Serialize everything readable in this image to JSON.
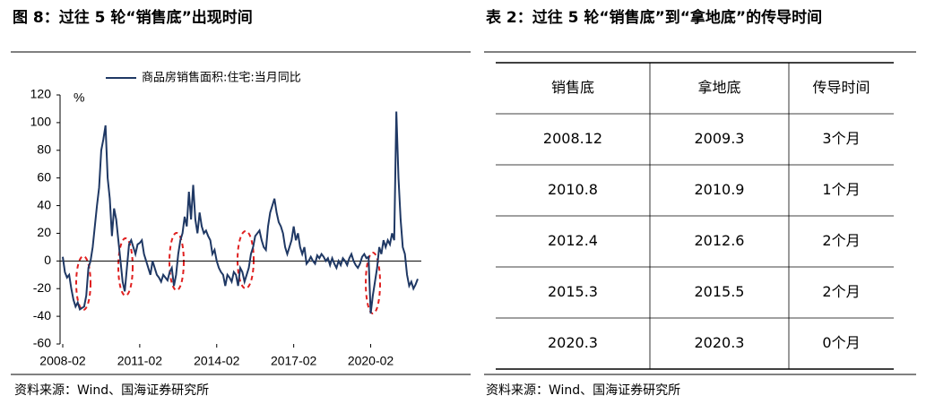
{
  "chart_data": {
    "type": "line",
    "title": "图 8：过往 5 轮“销售底”出现时间",
    "y_unit": "%",
    "source": "资料来源：Wind、国海证券研究所",
    "categories": [
      "2008-02",
      null,
      null,
      null,
      null,
      null,
      null,
      null,
      null,
      null,
      null,
      null,
      null,
      null,
      null,
      null,
      null,
      null,
      null,
      null,
      null,
      null,
      null,
      null,
      null,
      null,
      null,
      null,
      null,
      null,
      null,
      null,
      null,
      null,
      null,
      null,
      "2011-02",
      null,
      null,
      null,
      null,
      null,
      null,
      null,
      null,
      null,
      null,
      null,
      null,
      null,
      null,
      null,
      null,
      null,
      null,
      null,
      null,
      null,
      null,
      null,
      null,
      null,
      null,
      null,
      null,
      null,
      null,
      null,
      null,
      null,
      null,
      null,
      "2014-02",
      null,
      null,
      null,
      null,
      null,
      null,
      null,
      null,
      null,
      null,
      null,
      null,
      null,
      null,
      null,
      null,
      null,
      null,
      null,
      null,
      null,
      null,
      null,
      null,
      null,
      null,
      null,
      null,
      null,
      null,
      null,
      null,
      null,
      null,
      null,
      "2017-02",
      null,
      null,
      null,
      null,
      null,
      null,
      null,
      null,
      null,
      null,
      null,
      null,
      null,
      null,
      null,
      null,
      null,
      null,
      null,
      null,
      null,
      null,
      null,
      null,
      null,
      null,
      null,
      null,
      null,
      null,
      null,
      null,
      null,
      null,
      null,
      "2020-02",
      null,
      null,
      null,
      null,
      null,
      null,
      null,
      null,
      null,
      null,
      null,
      null,
      null,
      null,
      null,
      null,
      null,
      null,
      null,
      null,
      null,
      null
    ],
    "series": [
      {
        "name": "商品房销售面积:住宅:当月同比",
        "color": "#1f3864",
        "values": [
          3,
          -8,
          -12,
          -10,
          -20,
          -28,
          -33,
          -30,
          -35,
          -34,
          -33,
          -25,
          -5,
          0,
          10,
          25,
          40,
          53,
          80,
          88,
          98,
          60,
          45,
          18,
          38,
          30,
          15,
          0,
          -15,
          -22,
          -5,
          12,
          15,
          10,
          5,
          12,
          13,
          15,
          5,
          0,
          -5,
          -10,
          0,
          -5,
          -10,
          -12,
          -15,
          -10,
          -12,
          -14,
          -8,
          -5,
          -18,
          -10,
          5,
          15,
          20,
          32,
          25,
          50,
          30,
          55,
          30,
          20,
          35,
          25,
          20,
          22,
          18,
          15,
          5,
          8,
          0,
          -5,
          -8,
          -10,
          -18,
          -10,
          -12,
          -15,
          -8,
          -10,
          -18,
          -5,
          -8,
          -15,
          -10,
          -5,
          5,
          10,
          18,
          20,
          22,
          15,
          10,
          8,
          25,
          35,
          40,
          45,
          35,
          28,
          25,
          20,
          10,
          5,
          10,
          15,
          25,
          15,
          20,
          10,
          5,
          10,
          -2,
          0,
          3,
          0,
          -2,
          4,
          2,
          5,
          3,
          0,
          2,
          -3,
          2,
          -2,
          -5,
          0,
          -3,
          2,
          0,
          -3,
          2,
          5,
          0,
          -3,
          -5,
          -2,
          3,
          5,
          2,
          3,
          -38,
          -25,
          -15,
          -5,
          10,
          5,
          15,
          10,
          15,
          12,
          20,
          15,
          108,
          60,
          30,
          10,
          5,
          -10,
          -18,
          -15,
          -20,
          -17,
          -13
        ]
      }
    ],
    "ylim": [
      -60,
      120
    ],
    "yticks": [
      -60,
      -40,
      -20,
      0,
      20,
      40,
      60,
      80,
      100,
      120
    ]
  },
  "table_title": "表 2：过往 5 轮“销售底”到“拿地底”的传导时间",
  "table": {
    "header": [
      "销售底",
      "拿地底",
      "传导时间"
    ],
    "rows": [
      [
        "2008.12",
        "2009.3",
        "3个月"
      ],
      [
        "2010.8",
        "2010.9",
        "1个月"
      ],
      [
        "2012.4",
        "2012.6",
        "2个月"
      ],
      [
        "2015.3",
        "2015.5",
        "2个月"
      ],
      [
        "2020.3",
        "2020.3",
        "0个月"
      ]
    ]
  },
  "table_source": "资料来源：Wind、国海证券研究所"
}
